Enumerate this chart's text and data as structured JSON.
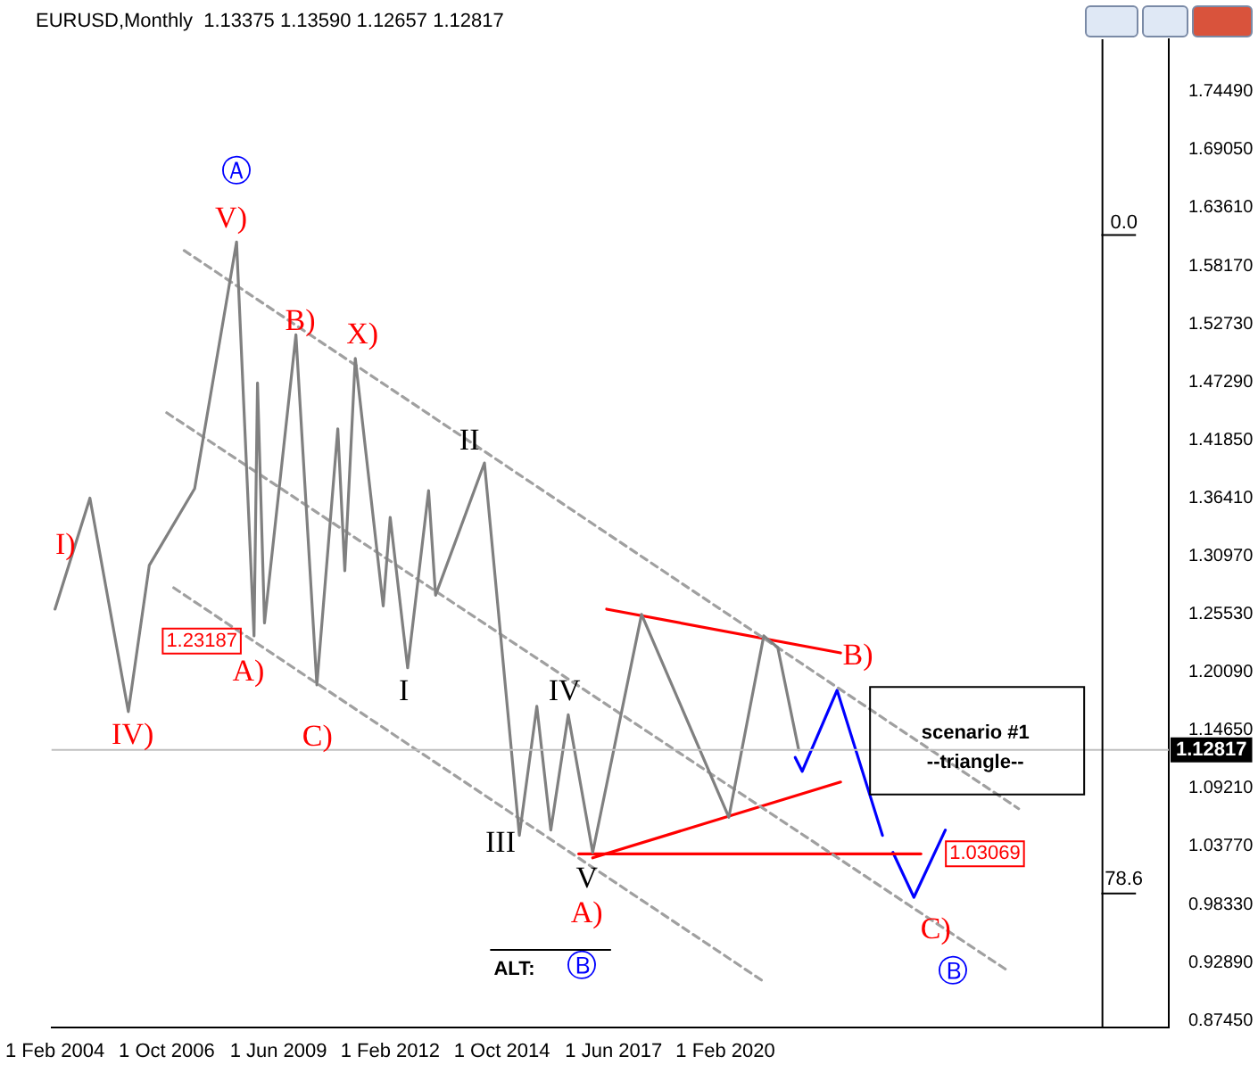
{
  "chart_data": {
    "type": "line",
    "title": "EURUSD,Monthly  1.13375 1.13590 1.12657 1.12817",
    "xlim": [
      "2004-01",
      "2030-09"
    ],
    "xticks": [
      {
        "value": "2004-02",
        "label": "1 Feb 2004"
      },
      {
        "value": "2006-10",
        "label": "1 Oct 2006"
      },
      {
        "value": "2009-06",
        "label": "1 Jun 2009"
      },
      {
        "value": "2012-02",
        "label": "1 Feb 2012"
      },
      {
        "value": "2014-10",
        "label": "1 Oct 2014"
      },
      {
        "value": "2017-06",
        "label": "1 Jun 2017"
      },
      {
        "value": "2020-02",
        "label": "1 Feb 2020"
      }
    ],
    "ylim": [
      0.868,
      1.794
    ],
    "yticks": [
      {
        "value": 0.8745,
        "label": "0.87450"
      },
      {
        "value": 0.9289,
        "label": "0.92890"
      },
      {
        "value": 0.9833,
        "label": "0.98330"
      },
      {
        "value": 1.0377,
        "label": "1.03770"
      },
      {
        "value": 1.0921,
        "label": "1.09210"
      },
      {
        "value": 1.1465,
        "label": "1.14650"
      },
      {
        "value": 1.2009,
        "label": "1.20090"
      },
      {
        "value": 1.2553,
        "label": "1.25530"
      },
      {
        "value": 1.3097,
        "label": "1.30970"
      },
      {
        "value": 1.3641,
        "label": "1.36410"
      },
      {
        "value": 1.4185,
        "label": "1.41850"
      },
      {
        "value": 1.4729,
        "label": "1.47290"
      },
      {
        "value": 1.5273,
        "label": "1.52730"
      },
      {
        "value": 1.5817,
        "label": "1.58170"
      },
      {
        "value": 1.6361,
        "label": "1.63610"
      },
      {
        "value": 1.6905,
        "label": "1.69050"
      },
      {
        "value": 1.7449,
        "label": "1.74490"
      }
    ],
    "grid": false,
    "legend": false,
    "marker": "none",
    "series": [
      {
        "color": "#808080",
        "x": [
          "2004-02",
          "2004-12",
          "2005-11",
          "2006-05",
          "2007-06",
          "2008-06",
          "2008-11",
          "2008-12",
          "2009-02",
          "2009-11",
          "2010-05",
          "2010-11",
          "2011-01",
          "2011-04",
          "2011-12",
          "2012-02",
          "2012-07",
          "2013-01",
          "2013-03",
          "2014-05",
          "2015-03",
          "2015-08",
          "2015-12",
          "2016-05",
          "2016-12",
          "2018-02",
          "2020-03",
          "2021-01",
          "2021-05",
          "2021-11"
        ],
        "values": [
          1.26,
          1.364,
          1.164,
          1.301,
          1.373,
          1.604,
          1.235,
          1.472,
          1.247,
          1.517,
          1.189,
          1.429,
          1.296,
          1.495,
          1.263,
          1.346,
          1.205,
          1.371,
          1.273,
          1.397,
          1.048,
          1.169,
          1.053,
          1.161,
          1.032,
          1.255,
          1.065,
          1.235,
          1.224,
          1.12817
        ]
      },
      {
        "color": "#a0a0a0",
        "line_style": "dashed",
        "x": [
          "2007-03",
          "2027-02"
        ],
        "values": [
          1.596,
          1.073
        ]
      },
      {
        "color": "#a0a0a0",
        "line_style": "dashed",
        "x": [
          "2006-10",
          "2026-11"
        ],
        "values": [
          1.444,
          0.921
        ]
      },
      {
        "color": "#a0a0a0",
        "line_style": "dashed",
        "x": [
          "2006-12",
          "2021-01"
        ],
        "values": [
          1.28,
          0.911
        ]
      },
      {
        "color": "#ff0000",
        "x": [
          "2017-04",
          "2022-11"
        ],
        "values": [
          1.26,
          1.219
        ]
      },
      {
        "color": "#ff0000",
        "x": [
          "2016-12",
          "2022-11"
        ],
        "values": [
          1.027,
          1.098
        ]
      },
      {
        "color": "#ff0000",
        "x": [
          "2016-08",
          "2024-10"
        ],
        "values": [
          1.03069,
          1.03069
        ]
      },
      {
        "color": "#0000ff",
        "x": [
          "2021-10",
          "2021-12",
          "2022-10",
          "2023-11"
        ],
        "values": [
          1.121,
          1.108,
          1.184,
          1.048
        ]
      },
      {
        "color": "#0000ff",
        "x": [
          "2024-02",
          "2024-08",
          "2025-05"
        ],
        "values": [
          1.032,
          0.99,
          1.053
        ]
      }
    ],
    "ref_lines": [
      {
        "axis": "y",
        "value": 1.12817,
        "label": "1.12817",
        "color": "#c0c0c0"
      },
      {
        "axis": "x",
        "value": "2029-02",
        "color": "#000000"
      }
    ],
    "annotations": [
      "Ⓐ",
      "V)",
      "B)",
      "X)",
      "II",
      "I)",
      "1.23187",
      "A)",
      "IV)",
      "C)",
      "I",
      "IV",
      "III",
      "V",
      "A)",
      "B)",
      "scenario #1",
      "--triangle--",
      {
        "text": "1.03069",
        "x": "2024-10",
        "y": 1.03069
      },
      "C)",
      "Ⓑ",
      "ALT:",
      "Ⓑ",
      "0.0",
      "78.6"
    ]
  }
}
